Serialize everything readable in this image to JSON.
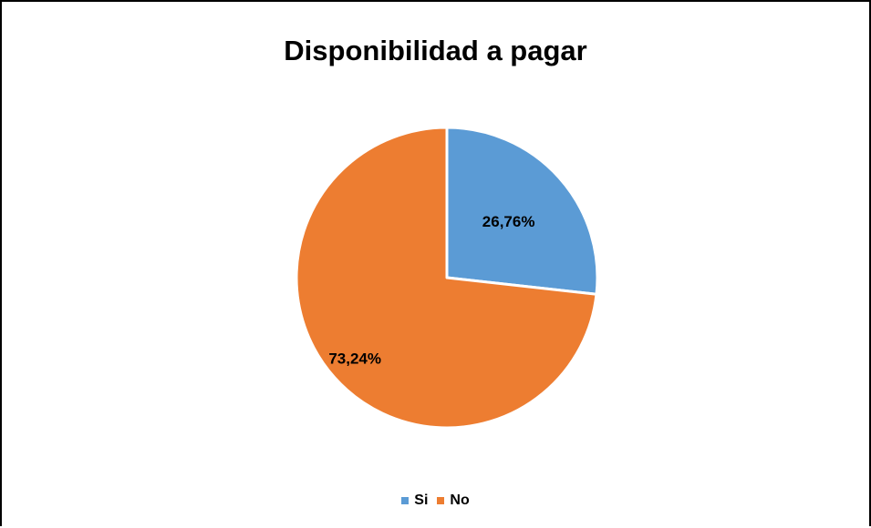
{
  "chart_data": {
    "type": "pie",
    "title": "Disponibilidad a pagar",
    "categories": [
      "Si",
      "No"
    ],
    "values": [
      26.76,
      73.24
    ],
    "labels": [
      "26,76%",
      "73,24%"
    ],
    "colors": [
      "#5B9BD5",
      "#ED7D31"
    ],
    "legend_position": "bottom",
    "legend": [
      "Si",
      "No"
    ]
  }
}
